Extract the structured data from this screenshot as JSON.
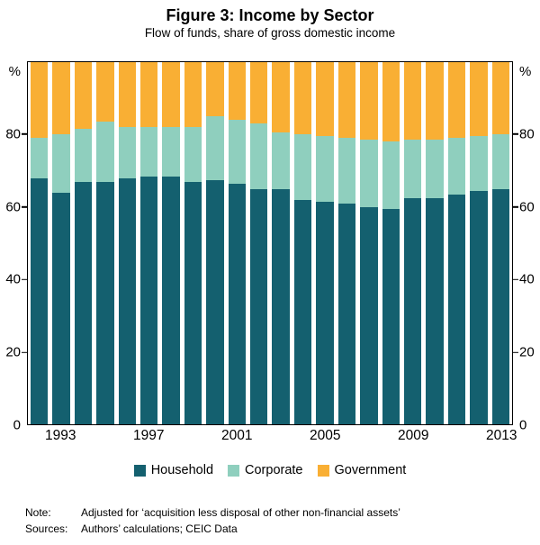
{
  "title": "Figure 3: Income by Sector",
  "subtitle": "Flow of funds, share of gross domestic income",
  "y_axis": {
    "unit": "%",
    "ticks": [
      0,
      20,
      40,
      60,
      80
    ]
  },
  "x_axis": {
    "labels": [
      "1993",
      "1997",
      "2001",
      "2005",
      "2009",
      "2013"
    ]
  },
  "legend": [
    {
      "label": "Household",
      "color": "#14606f"
    },
    {
      "label": "Corporate",
      "color": "#8fcfbe"
    },
    {
      "label": "Government",
      "color": "#f9af34"
    }
  ],
  "notes": [
    {
      "label": "Note:",
      "text": "Adjusted for ‘acquisition less disposal of other non-financial assets’"
    },
    {
      "label": "Sources:",
      "text": "Authors’ calculations; CEIC Data"
    }
  ],
  "chart_data": {
    "type": "bar",
    "stacked": true,
    "title": "Figure 3: Income by Sector",
    "subtitle": "Flow of funds, share of gross domestic income",
    "ylabel": "%",
    "ylim": [
      0,
      100
    ],
    "grid": false,
    "legend_position": "bottom",
    "x": [
      1992,
      1993,
      1994,
      1995,
      1996,
      1997,
      1998,
      1999,
      2000,
      2001,
      2002,
      2003,
      2004,
      2005,
      2006,
      2007,
      2008,
      2009,
      2010,
      2011,
      2012,
      2013
    ],
    "series": [
      {
        "name": "Household",
        "color": "#14606f",
        "values": [
          68,
          64,
          67,
          67,
          68,
          68.5,
          68.5,
          67,
          67.5,
          66.5,
          65,
          65,
          62,
          61.5,
          61,
          60,
          59.5,
          62.5,
          62.5,
          63.5,
          64.5,
          65
        ]
      },
      {
        "name": "Corporate",
        "color": "#8fcfbe",
        "values": [
          11,
          16,
          14.5,
          16.5,
          14,
          13.5,
          13.5,
          15,
          17.5,
          17.5,
          18,
          15.5,
          18,
          18,
          18,
          18.5,
          18.5,
          16,
          16,
          15.5,
          15,
          15
        ]
      },
      {
        "name": "Government",
        "color": "#f9af34",
        "values": [
          21,
          20,
          18.5,
          16.5,
          18,
          18,
          18,
          18,
          15,
          16,
          17,
          19.5,
          20,
          20.5,
          21,
          21.5,
          22,
          21.5,
          21.5,
          21,
          20.5,
          20
        ]
      }
    ]
  }
}
